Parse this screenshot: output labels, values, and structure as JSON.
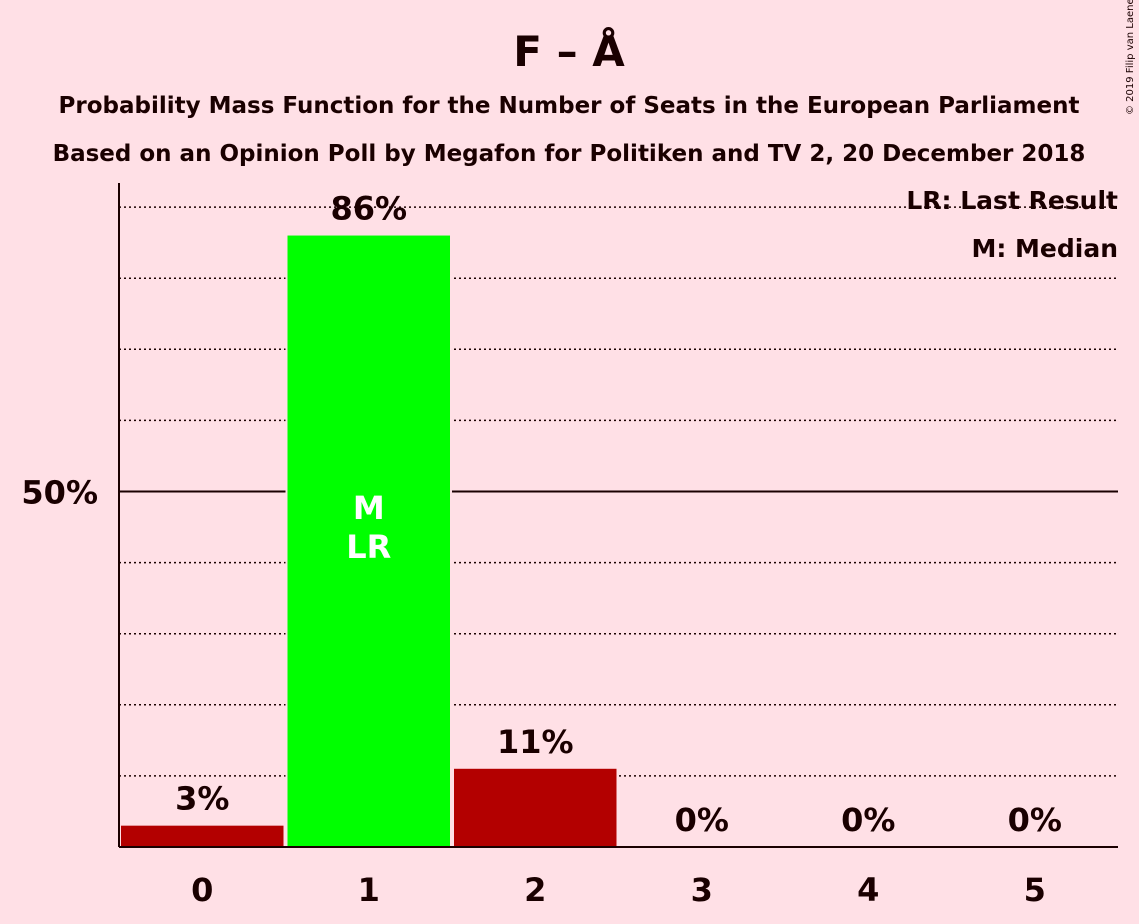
{
  "copyright": "© 2019 Filip van Laenen",
  "chart_data": {
    "type": "bar",
    "title": "F – Å",
    "subtitle_lines": [
      "Probability Mass Function for the Number of Seats in the European Parliament",
      "Based on an Opinion Poll by Megafon for Politiken and TV 2, 20 December 2018"
    ],
    "categories": [
      "0",
      "1",
      "2",
      "3",
      "4",
      "5"
    ],
    "values": [
      3,
      86,
      11,
      0,
      0,
      0
    ],
    "value_labels": [
      "3%",
      "86%",
      "11%",
      "0%",
      "0%",
      "0%"
    ],
    "bar_colors": [
      "#B30000",
      "#00FF00",
      "#B30000",
      "#B30000",
      "#B30000",
      "#B30000"
    ],
    "highlight_index": 1,
    "bar_annotations": [
      "M",
      "LR"
    ],
    "y_tick_label": "50%",
    "y_tick_value": 50,
    "ylim": [
      0,
      94
    ],
    "grid_step": 10,
    "legend": [
      "LR: Last Result",
      "M: Median"
    ],
    "legend_position": "top-right",
    "colors": {
      "background": "#FFE0E6",
      "text": "#1a0000",
      "bar": "#B30000",
      "highlight": "#00FF00"
    }
  }
}
